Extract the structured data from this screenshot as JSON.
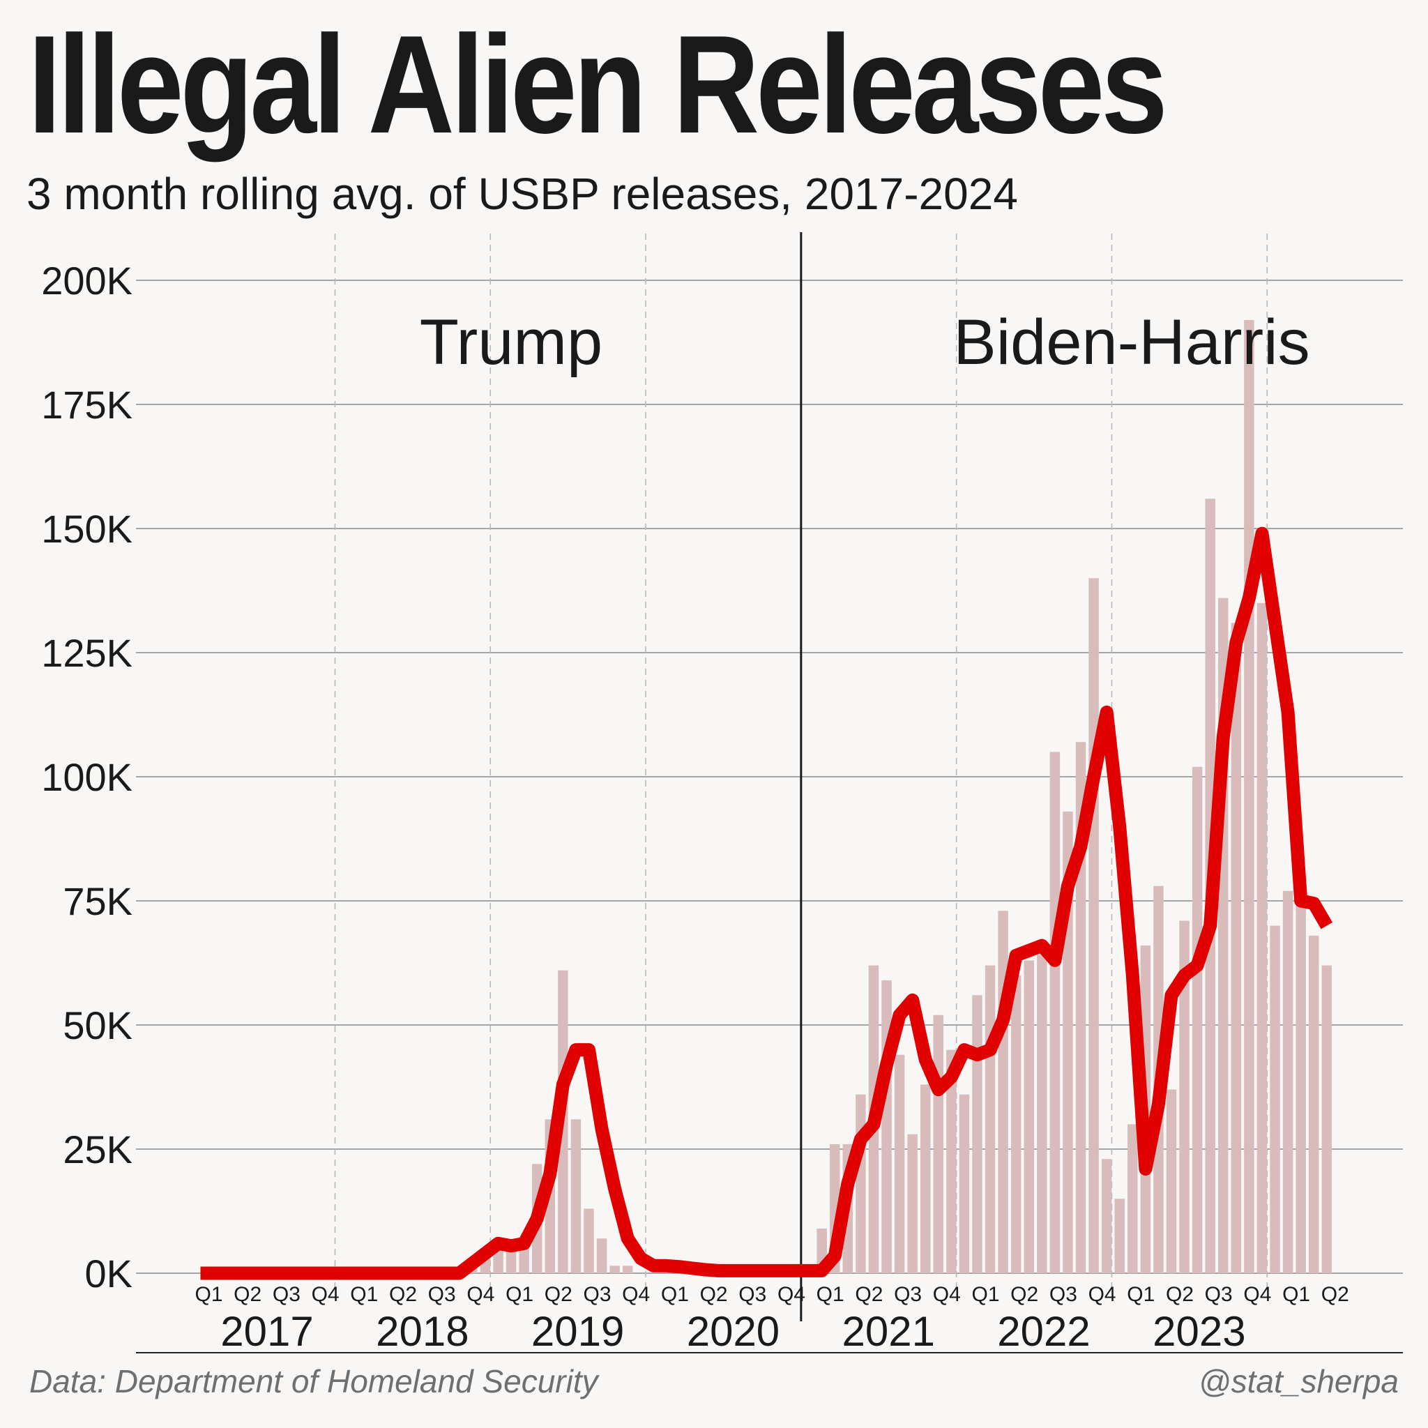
{
  "header": {
    "title": "Illegal Alien Releases",
    "subtitle": "3 month rolling avg. of USBP releases, 2017-2024"
  },
  "footer": {
    "source": "Data: Department of Homeland Security",
    "credit": "@stat_sherpa"
  },
  "colors": {
    "background": "#f8f7f6",
    "bar": "#d8bcbc",
    "line": "#e00000",
    "grid": "#8a8a8a",
    "text": "#1a1a1a",
    "footer_text": "#6f6f6f"
  },
  "chart_data": {
    "type": "bar",
    "title": "Illegal Alien Releases",
    "subtitle": "3 month rolling avg. of USBP releases, 2017-2024",
    "y_tick_labels": [
      "0K",
      "25K",
      "50K",
      "75K",
      "100K",
      "125K",
      "150K",
      "175K",
      "200K"
    ],
    "ylim": [
      0,
      200000
    ],
    "grid": "horizontal",
    "x_quarter_labels": [
      "Q1",
      "Q2",
      "Q3",
      "Q4",
      "Q1",
      "Q2",
      "Q3",
      "Q4",
      "Q1",
      "Q2",
      "Q3",
      "Q4",
      "Q1",
      "Q2",
      "Q3",
      "Q4",
      "Q1",
      "Q2",
      "Q3",
      "Q4",
      "Q1",
      "Q2",
      "Q3",
      "Q4",
      "Q1",
      "Q2",
      "Q3",
      "Q4",
      "Q1",
      "Q2"
    ],
    "x_year_labels": [
      "2017",
      "2018",
      "2019",
      "2020",
      "2021",
      "2022",
      "2023"
    ],
    "annotations": [
      "Trump",
      "Biden-Harris"
    ],
    "divider_after_month": "2020-12",
    "series": [
      {
        "kind": "bars",
        "values": [
          0,
          0,
          0,
          0,
          0,
          0,
          0,
          0,
          0,
          0,
          0,
          0,
          0,
          0,
          0,
          0,
          0,
          0,
          0,
          0,
          0,
          2000,
          5000,
          6000,
          5000,
          6000,
          22000,
          31000,
          61000,
          31000,
          13000,
          7000,
          1500,
          1500,
          0,
          0,
          0,
          0,
          0,
          0,
          0,
          0,
          0,
          0,
          0,
          0,
          0,
          0,
          9000,
          26000,
          26000,
          36000,
          62000,
          59000,
          44000,
          28000,
          38000,
          52000,
          45000,
          36000,
          56000,
          62000,
          73000,
          60000,
          63000,
          67000,
          105000,
          93000,
          107000,
          140000,
          23000,
          15000,
          30000,
          66000,
          78000,
          37000,
          71000,
          102000,
          156000,
          136000,
          131000,
          192000,
          135000,
          70000,
          77000,
          76000,
          68000,
          62000
        ]
      },
      {
        "kind": "line",
        "values": [
          0,
          0,
          0,
          0,
          0,
          0,
          0,
          0,
          0,
          0,
          0,
          0,
          0,
          0,
          0,
          0,
          0,
          0,
          0,
          0,
          0,
          2000,
          4000,
          6000,
          5500,
          6000,
          11000,
          20000,
          38000,
          45000,
          45000,
          29000,
          17000,
          7000,
          3000,
          1500,
          1500,
          1300,
          1000,
          700,
          500,
          500,
          500,
          500,
          500,
          500,
          500,
          500,
          500,
          3500,
          18000,
          27000,
          30000,
          42000,
          52000,
          55000,
          43000,
          37000,
          39500,
          45000,
          44000,
          45000,
          51000,
          64000,
          65000,
          66000,
          63000,
          78000,
          86000,
          100000,
          113000,
          90000,
          60000,
          21000,
          34000,
          56000,
          60000,
          62000,
          70000,
          108000,
          127000,
          136000,
          149000,
          131000,
          113000,
          75000,
          74500,
          70000
        ]
      }
    ]
  }
}
